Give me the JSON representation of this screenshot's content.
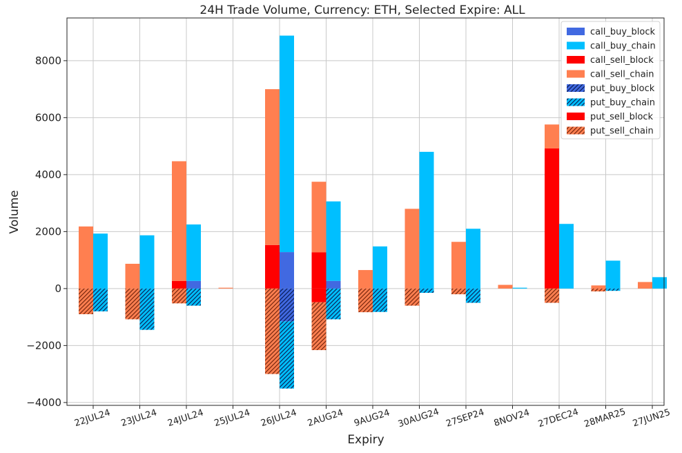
{
  "chart_data": {
    "type": "bar",
    "title": "24H Trade Volume, Currency: ETH, Selected Expire: ALL",
    "xlabel": "Expiry",
    "ylabel": "Volume",
    "ylim": [
      -4100,
      9500
    ],
    "yticks": [
      -4000,
      -2000,
      0,
      2000,
      4000,
      6000,
      8000
    ],
    "ytick_labels": [
      "−4000",
      "−2000",
      "0",
      "2000",
      "4000",
      "6000",
      "8000"
    ],
    "grid": true,
    "legend_position": "top-right",
    "categories": [
      "22JUL24",
      "23JUL24",
      "24JUL24",
      "25JUL24",
      "26JUL24",
      "2AUG24",
      "9AUG24",
      "30AUG24",
      "27SEP24",
      "8NOV24",
      "27DEC24",
      "28MAR25",
      "27JUN25"
    ],
    "series": [
      {
        "name": "call_buy_block",
        "color": "#4169e1",
        "hatch": false,
        "group": "buy",
        "sign": 1,
        "values": [
          0,
          0,
          270,
          0,
          1280,
          270,
          0,
          0,
          0,
          0,
          0,
          0,
          0
        ]
      },
      {
        "name": "call_buy_chain",
        "color": "#00bfff",
        "hatch": false,
        "group": "buy",
        "sign": 1,
        "values": [
          1930,
          1870,
          1980,
          0,
          7600,
          2790,
          1480,
          4800,
          2100,
          30,
          2270,
          980,
          400
        ]
      },
      {
        "name": "call_sell_block",
        "color": "#ff0000",
        "hatch": false,
        "group": "sell",
        "sign": 1,
        "values": [
          0,
          0,
          270,
          0,
          1530,
          1270,
          0,
          0,
          0,
          0,
          4920,
          0,
          0
        ]
      },
      {
        "name": "call_sell_chain",
        "color": "#ff7f50",
        "hatch": false,
        "group": "sell",
        "sign": 1,
        "values": [
          2180,
          870,
          4200,
          30,
          5470,
          2480,
          650,
          2800,
          1640,
          130,
          840,
          110,
          230
        ]
      },
      {
        "name": "put_buy_block",
        "color": "#4169e1",
        "hatch": true,
        "group": "buy",
        "sign": -1,
        "values": [
          0,
          0,
          0,
          0,
          1150,
          0,
          0,
          0,
          0,
          0,
          0,
          0,
          0
        ]
      },
      {
        "name": "put_buy_chain",
        "color": "#00bfff",
        "hatch": true,
        "group": "buy",
        "sign": -1,
        "values": [
          800,
          1450,
          600,
          0,
          2360,
          1080,
          820,
          150,
          500,
          0,
          0,
          80,
          0
        ]
      },
      {
        "name": "put_sell_block",
        "color": "#ff0000",
        "hatch": false,
        "group": "sell",
        "sign": -1,
        "values": [
          0,
          0,
          0,
          0,
          0,
          480,
          0,
          0,
          0,
          0,
          0,
          0,
          0
        ]
      },
      {
        "name": "put_sell_chain",
        "color": "#ff7f50",
        "hatch": true,
        "group": "sell",
        "sign": -1,
        "values": [
          900,
          1080,
          520,
          0,
          3000,
          1680,
          830,
          600,
          200,
          0,
          500,
          100,
          0
        ]
      }
    ]
  }
}
